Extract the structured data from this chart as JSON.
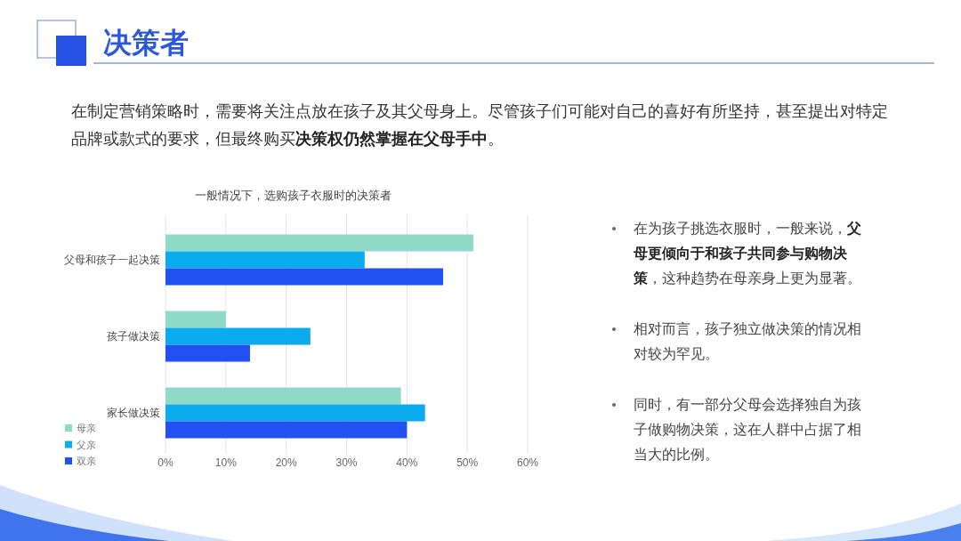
{
  "chart_data": {
    "type": "bar",
    "orientation": "horizontal",
    "title": "一般情况下，选购孩子衣服时的决策者",
    "categories": [
      "父母和孩子一起决策",
      "孩子做决策",
      "家长做决策"
    ],
    "series": [
      {
        "name": "母亲",
        "color": "#8fdac6",
        "values": [
          51,
          10,
          39
        ]
      },
      {
        "name": "父亲",
        "color": "#0bacee",
        "values": [
          33,
          24,
          43
        ]
      },
      {
        "name": "双亲",
        "color": "#2350f0",
        "values": [
          46,
          14,
          40
        ]
      }
    ],
    "xlim": [
      0,
      60
    ],
    "xticks": [
      {
        "value": 0,
        "label": "0%"
      },
      {
        "value": 10,
        "label": "10%"
      },
      {
        "value": 20,
        "label": "20%"
      },
      {
        "value": 30,
        "label": "30%"
      },
      {
        "value": 40,
        "label": "40%"
      },
      {
        "value": 50,
        "label": "50%"
      },
      {
        "value": 60,
        "label": "60%"
      }
    ],
    "grid": "x",
    "legend": "bottom left",
    "annotations": [
      "决策者",
      "在制定营销策略时，需要将关注点放在孩子及其父母身上。尽管孩子们可能对自己的喜好有所坚持，甚至提出对特定品牌或款式的要求，但最终购买**决策权仍然掌握在父母手中**。",
      "在为孩子挑选衣服时，一般来说，**父母更倾向于和孩子共同参与购物决策**，这种趋势在母亲身上更为显著。",
      "相对而言，孩子独立做决策的情况相对较为罕见。",
      "同时，有一部分父母会选择独自为孩子做购物决策，这在人群中占据了相当大的比例。"
    ]
  }
}
